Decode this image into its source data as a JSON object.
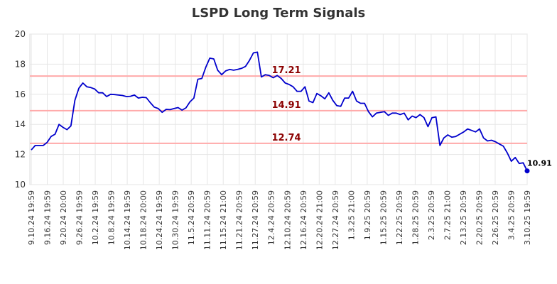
{
  "chart_data": {
    "type": "line",
    "title": "LSPD Long Term Signals",
    "xlabel": "",
    "ylabel": "",
    "ylim": [
      10,
      20
    ],
    "yticks": [
      10,
      12,
      14,
      16,
      18,
      20
    ],
    "grid": true,
    "x_tick_labels": [
      "9.10.24 19:59",
      "9.16.24 19:59",
      "9.20.24 20:00",
      "9.26.24 19:59",
      "10.2.24 19:59",
      "10.8.24 19:59",
      "10.14.24 19:59",
      "10.18.24 20:00",
      "10.24.24 19:59",
      "10.30.24 19:59",
      "11.5.24 20:59",
      "11.11.24 20:59",
      "11.15.24 21:00",
      "11.21.24 20:59",
      "11.27.24 20:59",
      "12.4.24 20:59",
      "12.10.24 20:59",
      "12.16.24 20:59",
      "12.20.24 21:00",
      "12.27.24 20:59",
      "1.3.25 21:00",
      "1.9.25 20:59",
      "1.15.25 20:59",
      "1.22.25 20:59",
      "1.28.25 20:59",
      "2.3.25 20:59",
      "2.7.25 21:00",
      "2.13.25 20:59",
      "2.20.25 20:59",
      "2.26.25 20:59",
      "3.4.25 20:59",
      "3.10.25 19:59"
    ],
    "series": [
      {
        "color": "#0000cc",
        "values": [
          12.3,
          12.6,
          12.6,
          12.6,
          12.8,
          13.2,
          13.35,
          14.0,
          13.8,
          13.65,
          13.9,
          15.6,
          16.4,
          16.75,
          16.5,
          16.45,
          16.35,
          16.1,
          16.1,
          15.85,
          16.0,
          15.98,
          15.95,
          15.92,
          15.85,
          15.87,
          15.95,
          15.75,
          15.8,
          15.78,
          15.45,
          15.15,
          15.05,
          14.8,
          15.0,
          14.98,
          15.05,
          15.12,
          14.95,
          15.1,
          15.5,
          15.75,
          17.0,
          17.05,
          17.8,
          18.4,
          18.35,
          17.6,
          17.3,
          17.55,
          17.65,
          17.6,
          17.65,
          17.72,
          17.85,
          18.25,
          18.75,
          18.8,
          17.15,
          17.3,
          17.25,
          17.1,
          17.25,
          17.05,
          16.75,
          16.65,
          16.5,
          16.2,
          16.2,
          16.5,
          15.55,
          15.45,
          16.05,
          15.9,
          15.7,
          16.1,
          15.6,
          15.25,
          15.2,
          15.75,
          15.75,
          16.2,
          15.55,
          15.4,
          15.4,
          14.85,
          14.5,
          14.75,
          14.8,
          14.85,
          14.6,
          14.75,
          14.75,
          14.65,
          14.75,
          14.3,
          14.55,
          14.45,
          14.65,
          14.45,
          13.85,
          14.45,
          14.5,
          12.6,
          13.1,
          13.3,
          13.15,
          13.2,
          13.35,
          13.5,
          13.7,
          13.6,
          13.5,
          13.7,
          13.1,
          12.9,
          12.95,
          12.85,
          12.7,
          12.55,
          12.1,
          11.55,
          11.8,
          11.4,
          11.45,
          10.91
        ]
      }
    ],
    "levels": [
      {
        "value": 17.21,
        "label": "17.21"
      },
      {
        "value": 14.91,
        "label": "14.91"
      },
      {
        "value": 12.74,
        "label": "12.74"
      }
    ],
    "level_color": "#ffaaaa",
    "level_label_color": "#8b0000",
    "last_point": {
      "value": 10.91,
      "label": "10.91"
    }
  }
}
